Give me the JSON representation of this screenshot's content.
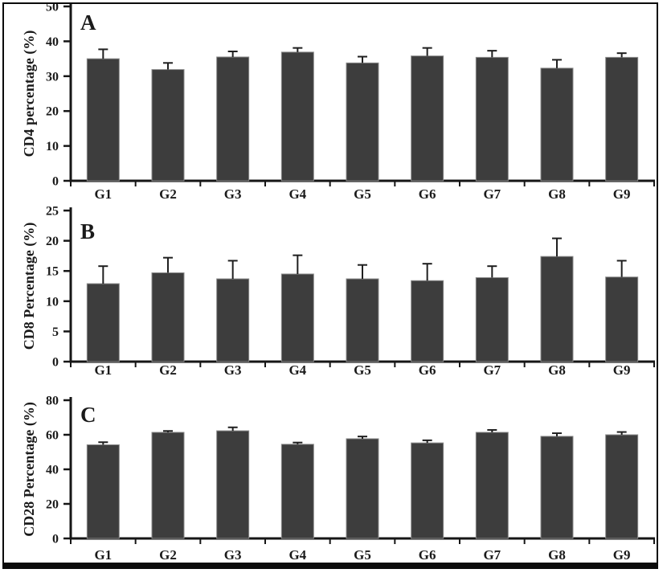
{
  "figure": {
    "background": "#ffffff",
    "border_color": "#0b0b0b",
    "bar_fill": "#3d3d3d",
    "bar_stroke": "#8a8a8a",
    "axis_color": "#161616",
    "text_color": "#1a1a1a",
    "error_bar_color": "#1f1f1f"
  },
  "chart_data": [
    {
      "type": "bar",
      "panel_label": "A",
      "title": "",
      "ylabel": "CD4 percentage (%)",
      "xlabel": "",
      "categories": [
        "G1",
        "G2",
        "G3",
        "G4",
        "G5",
        "G6",
        "G7",
        "G8",
        "G9"
      ],
      "values": [
        35.0,
        31.9,
        35.5,
        36.9,
        33.8,
        35.8,
        35.4,
        32.3,
        35.4
      ],
      "errors": [
        2.7,
        1.9,
        1.6,
        1.2,
        1.8,
        2.3,
        1.9,
        2.4,
        1.2
      ],
      "ylim": [
        0,
        50
      ],
      "yticks": [
        0,
        10,
        20,
        30,
        40,
        50
      ],
      "grid": false,
      "legend": null
    },
    {
      "type": "bar",
      "panel_label": "B",
      "title": "",
      "ylabel": "CD8 Percentage (%)",
      "xlabel": "",
      "categories": [
        "G1",
        "G2",
        "G3",
        "G4",
        "G5",
        "G6",
        "G7",
        "G8",
        "G9"
      ],
      "values": [
        12.9,
        14.7,
        13.7,
        14.5,
        13.7,
        13.4,
        13.9,
        17.4,
        14.0
      ],
      "errors": [
        2.9,
        2.5,
        3.0,
        3.1,
        2.3,
        2.8,
        1.9,
        3.0,
        2.7
      ],
      "ylim": [
        0,
        25
      ],
      "yticks": [
        0,
        5,
        10,
        15,
        20,
        25
      ],
      "grid": false,
      "legend": null
    },
    {
      "type": "bar",
      "panel_label": "C",
      "title": "",
      "ylabel": "CD28 Percentage (%)",
      "xlabel": "",
      "categories": [
        "G1",
        "G2",
        "G3",
        "G4",
        "G5",
        "G6",
        "G7",
        "G8",
        "G9"
      ],
      "values": [
        54.2,
        61.4,
        62.3,
        54.5,
        57.7,
        55.3,
        61.4,
        59.1,
        60.0
      ],
      "errors": [
        1.5,
        0.8,
        2.0,
        1.0,
        1.3,
        1.5,
        1.4,
        1.8,
        1.6
      ],
      "ylim": [
        0,
        80
      ],
      "yticks": [
        0,
        20,
        40,
        60,
        80
      ],
      "grid": false,
      "legend": null
    }
  ]
}
